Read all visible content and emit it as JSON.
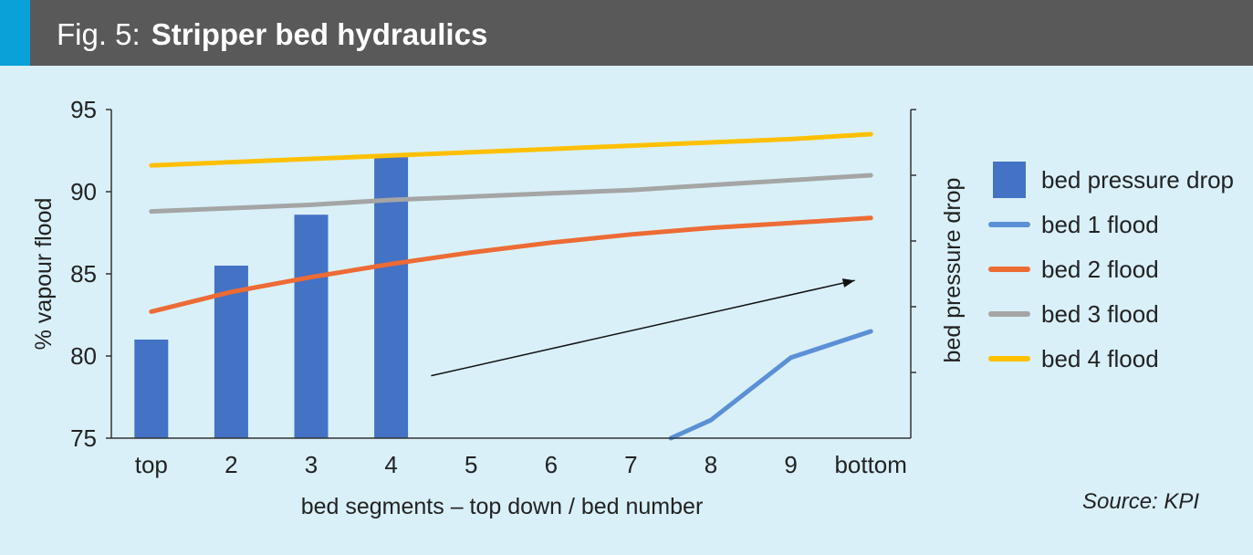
{
  "header": {
    "fig_label": "Fig. 5:",
    "title": "Stripper bed hydraulics",
    "accent_color": "#0aa0d8",
    "bar_color": "#595959"
  },
  "source": "Source: KPI",
  "colors": {
    "background": "#d9f0f9",
    "pressure_bar": "#4472c4",
    "bed1": "#5b8fd6",
    "bed2": "#ed6b35",
    "bed3": "#a5a5a5",
    "bed4": "#ffc000"
  },
  "chart_data": {
    "type": "bar+line",
    "xlabel": "bed segments – top down / bed number",
    "ylabel": "% vapour flood",
    "y2label": "bed pressure drop",
    "categories": [
      "top",
      "2",
      "3",
      "4",
      "5",
      "6",
      "7",
      "8",
      "9",
      "bottom"
    ],
    "ylim": [
      75,
      95
    ],
    "yticks": [
      75,
      80,
      85,
      90,
      95
    ],
    "y2_ticks_unlabeled": 5,
    "grid": false,
    "legend_position": "right",
    "legend": [
      "bed pressure drop",
      "bed 1 flood",
      "bed 2 flood",
      "bed 3 flood",
      "bed 4 flood"
    ],
    "bars": {
      "name": "bed pressure drop",
      "axis": "secondary (unlabeled)",
      "values": [
        81.0,
        85.5,
        88.6,
        92.1,
        null,
        null,
        null,
        null,
        null,
        null
      ]
    },
    "series": [
      {
        "name": "bed 1 flood",
        "points": [
          [
            7.5,
            75.0
          ],
          [
            8.0,
            76.1
          ],
          [
            9.0,
            79.9
          ],
          [
            10.0,
            81.5
          ]
        ]
      },
      {
        "name": "bed 2 flood",
        "values": [
          82.7,
          83.9,
          84.8,
          85.6,
          86.3,
          86.9,
          87.4,
          87.8,
          88.1,
          88.4
        ]
      },
      {
        "name": "bed 3 flood",
        "values": [
          88.8,
          89.0,
          89.2,
          89.5,
          89.7,
          89.9,
          90.1,
          90.4,
          90.7,
          91.0
        ]
      },
      {
        "name": "bed 4 flood",
        "values": [
          91.6,
          91.8,
          92.0,
          92.2,
          92.4,
          92.6,
          92.8,
          93.0,
          93.2,
          93.5
        ]
      }
    ],
    "annotations": [
      {
        "type": "arrow",
        "from": [
          4.5,
          78.8
        ],
        "to": [
          9.8,
          84.6
        ]
      }
    ]
  }
}
